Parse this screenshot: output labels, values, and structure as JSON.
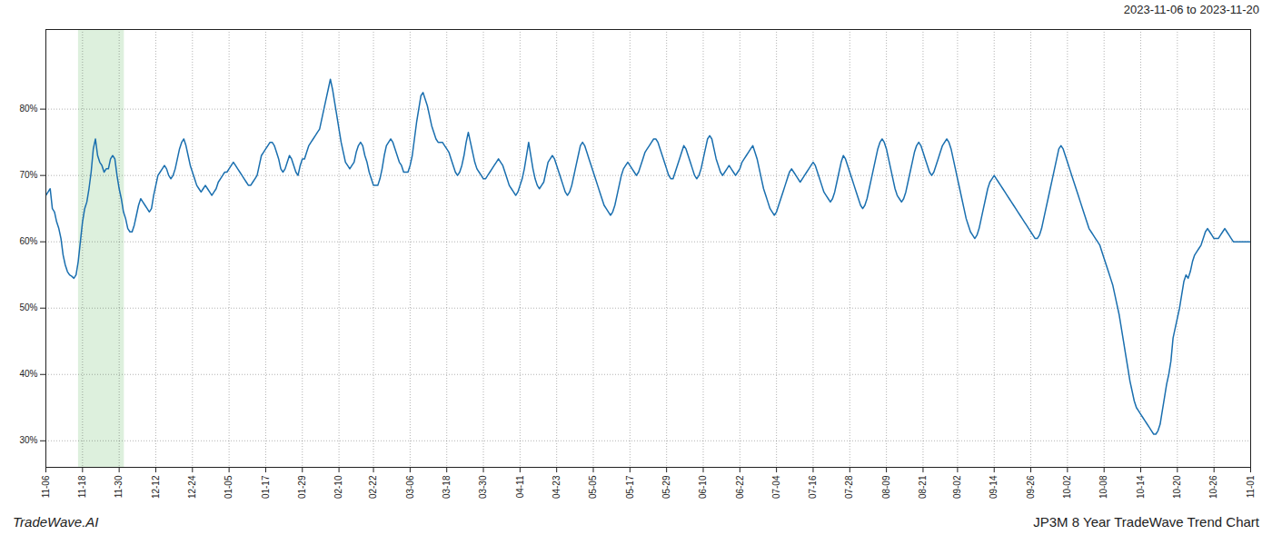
{
  "chart_data": {
    "type": "line",
    "title": "JP3M 8 Year TradeWave Trend Chart",
    "subtitle": "2023-11-06 to 2023-11-20",
    "annotations": [
      {
        "text": "TradeWave.AI"
      }
    ],
    "color": "#1a6faf",
    "grid": true,
    "ylim": [
      26,
      92
    ],
    "yticks": [
      {
        "value": 30,
        "label": "30%"
      },
      {
        "value": 40,
        "label": "40%"
      },
      {
        "value": 50,
        "label": "50%"
      },
      {
        "value": 60,
        "label": "60%"
      },
      {
        "value": 70,
        "label": "70%"
      },
      {
        "value": 80,
        "label": "80%"
      }
    ],
    "highlight": {
      "x_start": 15.12,
      "x_end": 36.4,
      "color": "#ddf0dd"
    },
    "categories": [
      "11-06",
      null,
      null,
      null,
      null,
      null,
      null,
      null,
      null,
      null,
      null,
      null,
      null,
      null,
      null,
      null,
      null,
      "11-18",
      null,
      null,
      null,
      null,
      null,
      null,
      null,
      null,
      null,
      null,
      null,
      null,
      null,
      null,
      null,
      null,
      "11-30",
      null,
      null,
      null,
      null,
      null,
      null,
      null,
      null,
      null,
      null,
      null,
      null,
      null,
      null,
      null,
      null,
      "12-12",
      null,
      null,
      null,
      null,
      null,
      null,
      null,
      null,
      null,
      null,
      null,
      null,
      null,
      null,
      null,
      null,
      "12-24",
      null,
      null,
      null,
      null,
      null,
      null,
      null,
      null,
      null,
      null,
      null,
      null,
      null,
      null,
      null,
      null,
      "01-05",
      null,
      null,
      null,
      null,
      null,
      null,
      null,
      null,
      null,
      null,
      null,
      null,
      null,
      null,
      null,
      null,
      "01-17",
      null,
      null,
      null,
      null,
      null,
      null,
      null,
      null,
      null,
      null,
      null,
      null,
      null,
      null,
      null,
      null,
      "01-29",
      null,
      null,
      null,
      null,
      null,
      null,
      null,
      null,
      null,
      null,
      null,
      null,
      null,
      null,
      null,
      null,
      "02-10",
      null,
      null,
      null,
      null,
      null,
      null,
      null,
      null,
      null,
      null,
      null,
      null,
      null,
      null,
      null,
      "02-22",
      null,
      null,
      null,
      null,
      null,
      null,
      null,
      null,
      null,
      null,
      null,
      null,
      null,
      null,
      null,
      null,
      "03-06",
      null,
      null,
      null,
      null,
      null,
      null,
      null,
      null,
      null,
      null,
      null,
      null,
      null,
      null,
      null,
      null,
      "03-18",
      null,
      null,
      null,
      null,
      null,
      null,
      null,
      null,
      null,
      null,
      null,
      null,
      null,
      null,
      null,
      null,
      "03-30",
      null,
      null,
      null,
      null,
      null,
      null,
      null,
      null,
      null,
      null,
      null,
      null,
      null,
      null,
      null,
      null,
      "04-11",
      null,
      null,
      null,
      null,
      null,
      null,
      null,
      null,
      null,
      null,
      null,
      null,
      null,
      null,
      null,
      null,
      "04-23",
      null,
      null,
      null,
      null,
      null,
      null,
      null,
      null,
      null,
      null,
      null,
      null,
      null,
      null,
      null,
      null,
      "05-05",
      null,
      null,
      null,
      null,
      null,
      null,
      null,
      null,
      null,
      null,
      null,
      null,
      null,
      null,
      null,
      null,
      "05-17",
      null,
      null,
      null,
      null,
      null,
      null,
      null,
      null,
      null,
      null,
      null,
      null,
      null,
      null,
      null,
      null,
      "05-29",
      null,
      null,
      null,
      null,
      null,
      null,
      null,
      null,
      null,
      null,
      null,
      null,
      null,
      null,
      null,
      null,
      "06-10",
      null,
      null,
      null,
      null,
      null,
      null,
      null,
      null,
      null,
      null,
      null,
      null,
      null,
      null,
      null,
      null,
      "06-22",
      null,
      null,
      null,
      null,
      null,
      null,
      null,
      null,
      null,
      null,
      null,
      null,
      null,
      null,
      null,
      null,
      "07-04",
      null,
      null,
      null,
      null,
      null,
      null,
      null,
      null,
      null,
      null,
      null,
      null,
      null,
      null,
      null,
      null,
      "07-16",
      null,
      null,
      null,
      null,
      null,
      null,
      null,
      null,
      null,
      null,
      null,
      null,
      null,
      null,
      null,
      null,
      "07-28",
      null,
      null,
      null,
      null,
      null,
      null,
      null,
      null,
      null,
      null,
      null,
      null,
      null,
      null,
      null,
      null,
      "08-09",
      null,
      null,
      null,
      null,
      null,
      null,
      null,
      null,
      null,
      null,
      null,
      null,
      null,
      null,
      null,
      null,
      "08-21",
      null,
      null,
      null,
      null,
      null,
      null,
      null,
      null,
      null,
      null,
      null,
      null,
      null,
      null,
      null,
      "09-02",
      null,
      null,
      null,
      null,
      null,
      null,
      null,
      null,
      null,
      null,
      null,
      null,
      null,
      null,
      null,
      null,
      "09-14",
      null,
      null,
      null,
      null,
      null,
      null,
      null,
      null,
      null,
      null,
      null,
      null,
      null,
      null,
      null,
      null,
      "09-26",
      null,
      null,
      null,
      null,
      null,
      null,
      null,
      null,
      null,
      null,
      null,
      null,
      null,
      null,
      null,
      null,
      "10-02",
      null,
      null,
      null,
      null,
      null,
      null,
      null,
      null,
      null,
      null,
      null,
      null,
      null,
      null,
      null,
      null,
      "10-08",
      null,
      null,
      null,
      null,
      null,
      null,
      null,
      null,
      null,
      null,
      null,
      null,
      null,
      null,
      null,
      null,
      "10-14",
      null,
      null,
      null,
      null,
      null,
      null,
      null,
      null,
      null,
      null,
      null,
      null,
      null,
      null,
      null,
      null,
      "10-20",
      null,
      null,
      null,
      null,
      null,
      null,
      null,
      null,
      null,
      null,
      null,
      null,
      null,
      null,
      null,
      null,
      "10-26",
      null,
      null,
      null,
      null,
      null,
      null,
      null,
      null,
      null,
      null,
      null,
      null,
      null,
      null,
      null,
      null,
      "11-01"
    ],
    "values": [
      67.0,
      67.5,
      68.0,
      65.0,
      64.5,
      63.0,
      62.0,
      60.5,
      58.0,
      56.5,
      55.5,
      55.0,
      54.8,
      54.5,
      55.0,
      57.0,
      60.0,
      63.0,
      65.0,
      66.0,
      68.0,
      70.5,
      74.0,
      75.5,
      73.0,
      72.0,
      71.5,
      70.5,
      71.0,
      71.0,
      72.5,
      73.0,
      72.5,
      70.0,
      68.0,
      66.5,
      64.5,
      63.5,
      62.0,
      61.5,
      61.5,
      62.5,
      64.0,
      65.5,
      66.5,
      66.0,
      65.5,
      65.0,
      64.5,
      65.0,
      67.0,
      68.5,
      70.0,
      70.5,
      71.0,
      71.5,
      71.0,
      70.0,
      69.5,
      70.0,
      71.0,
      72.5,
      74.0,
      75.0,
      75.5,
      74.5,
      73.0,
      71.5,
      70.5,
      69.5,
      68.5,
      68.0,
      67.5,
      68.0,
      68.5,
      68.0,
      67.5,
      67.0,
      67.5,
      68.0,
      69.0,
      69.5,
      70.0,
      70.5,
      70.5,
      71.0,
      71.5,
      72.0,
      71.5,
      71.0,
      70.5,
      70.0,
      69.5,
      69.0,
      68.5,
      68.5,
      69.0,
      69.5,
      70.0,
      71.5,
      73.0,
      73.5,
      74.0,
      74.5,
      75.0,
      75.0,
      74.5,
      73.5,
      72.5,
      71.0,
      70.5,
      71.0,
      72.0,
      73.0,
      72.5,
      71.5,
      70.5,
      70.0,
      71.5,
      72.5,
      72.5,
      73.5,
      74.5,
      75.0,
      75.5,
      76.0,
      76.5,
      77.0,
      78.5,
      80.0,
      81.5,
      83.0,
      84.5,
      83.0,
      81.0,
      79.0,
      77.0,
      75.0,
      73.5,
      72.0,
      71.5,
      71.0,
      71.5,
      72.0,
      73.5,
      74.5,
      75.0,
      74.5,
      73.0,
      72.0,
      70.5,
      69.5,
      68.5,
      68.5,
      68.5,
      69.5,
      71.0,
      73.0,
      74.5,
      75.0,
      75.5,
      75.0,
      74.0,
      73.0,
      72.0,
      71.5,
      70.5,
      70.5,
      70.5,
      71.5,
      73.0,
      75.5,
      78.0,
      80.0,
      82.0,
      82.5,
      81.5,
      80.5,
      79.0,
      77.5,
      76.5,
      75.5,
      75.0,
      75.0,
      75.0,
      74.5,
      74.0,
      73.5,
      72.5,
      71.5,
      70.5,
      70.0,
      70.5,
      71.5,
      73.0,
      75.0,
      76.5,
      75.0,
      73.5,
      72.0,
      71.0,
      70.5,
      70.0,
      69.5,
      69.5,
      70.0,
      70.5,
      71.0,
      71.5,
      72.0,
      72.5,
      72.0,
      71.5,
      70.5,
      69.5,
      68.5,
      68.0,
      67.5,
      67.0,
      67.5,
      68.5,
      69.5,
      71.0,
      73.0,
      75.0,
      73.0,
      71.0,
      69.5,
      68.5,
      68.0,
      68.5,
      69.0,
      70.5,
      72.0,
      72.5,
      73.0,
      72.5,
      71.5,
      70.5,
      69.5,
      68.5,
      67.5,
      67.0,
      67.5,
      68.5,
      70.0,
      71.5,
      73.0,
      74.5,
      75.0,
      74.5,
      73.5,
      72.5,
      71.5,
      70.5,
      69.5,
      68.5,
      67.5,
      66.5,
      65.5,
      65.0,
      64.5,
      64.0,
      64.5,
      65.5,
      67.0,
      68.5,
      70.0,
      71.0,
      71.5,
      72.0,
      71.5,
      71.0,
      70.5,
      70.0,
      70.5,
      71.5,
      72.5,
      73.5,
      74.0,
      74.5,
      75.0,
      75.5,
      75.5,
      75.0,
      74.0,
      73.0,
      72.0,
      71.0,
      70.0,
      69.5,
      69.5,
      70.5,
      71.5,
      72.5,
      73.5,
      74.5,
      74.0,
      73.0,
      72.0,
      71.0,
      70.0,
      69.5,
      70.0,
      71.0,
      72.5,
      74.0,
      75.5,
      76.0,
      75.5,
      74.0,
      72.5,
      71.5,
      70.5,
      70.0,
      70.5,
      71.0,
      71.5,
      71.0,
      70.5,
      70.0,
      70.5,
      71.0,
      72.0,
      72.5,
      73.0,
      73.5,
      74.0,
      74.5,
      73.5,
      72.5,
      71.0,
      69.5,
      68.0,
      67.0,
      66.0,
      65.0,
      64.5,
      64.0,
      64.5,
      65.5,
      66.5,
      67.5,
      68.5,
      69.5,
      70.5,
      71.0,
      70.5,
      70.0,
      69.5,
      69.0,
      69.5,
      70.0,
      70.5,
      71.0,
      71.5,
      72.0,
      71.5,
      70.5,
      69.5,
      68.5,
      67.5,
      67.0,
      66.5,
      66.0,
      66.5,
      67.5,
      69.0,
      70.5,
      72.0,
      73.0,
      72.5,
      71.5,
      70.5,
      69.5,
      68.5,
      67.5,
      66.5,
      65.5,
      65.0,
      65.5,
      66.5,
      68.0,
      69.5,
      71.0,
      72.5,
      74.0,
      75.0,
      75.5,
      75.0,
      74.0,
      72.5,
      71.0,
      69.5,
      68.0,
      67.0,
      66.5,
      66.0,
      66.5,
      67.5,
      69.0,
      70.5,
      72.0,
      73.5,
      74.5,
      75.0,
      74.5,
      73.5,
      72.5,
      71.5,
      70.5,
      70.0,
      70.5,
      71.5,
      72.5,
      73.5,
      74.5,
      75.0,
      75.5,
      75.0,
      74.0,
      72.5,
      71.0,
      69.5,
      68.0,
      66.5,
      65.0,
      63.5,
      62.5,
      61.5,
      61.0,
      60.5,
      61.0,
      62.0,
      63.5,
      65.0,
      66.5,
      68.0,
      69.0,
      69.5,
      70.0,
      69.5,
      69.0,
      68.5,
      68.0,
      67.5,
      67.0,
      66.5,
      66.0,
      65.5,
      65.0,
      64.5,
      64.0,
      63.5,
      63.0,
      62.5,
      62.0,
      61.5,
      61.0,
      60.5,
      60.5,
      61.0,
      62.0,
      63.5,
      65.0,
      66.5,
      68.0,
      69.5,
      71.0,
      72.5,
      74.0,
      74.5,
      74.0,
      73.0,
      72.0,
      71.0,
      70.0,
      69.0,
      68.0,
      67.0,
      66.0,
      65.0,
      64.0,
      63.0,
      62.0,
      61.5,
      61.0,
      60.5,
      60.0,
      59.5,
      58.5,
      57.5,
      56.5,
      55.5,
      54.5,
      53.5,
      52.0,
      50.5,
      49.0,
      47.0,
      45.0,
      43.0,
      41.0,
      39.0,
      37.5,
      36.0,
      35.0,
      34.5,
      34.0,
      33.5,
      33.0,
      32.5,
      32.0,
      31.5,
      31.0,
      31.0,
      31.5,
      32.5,
      34.5,
      36.5,
      38.5,
      40.0,
      42.0,
      45.5,
      47.0,
      48.5,
      50.0,
      52.0,
      54.0,
      55.0,
      54.5,
      55.5,
      57.0,
      58.0,
      58.5,
      59.0,
      59.5,
      60.5,
      61.5,
      62.0,
      61.5,
      61.0,
      60.5,
      60.5,
      60.5,
      61.0,
      61.5,
      62.0,
      61.5,
      61.0,
      60.5,
      60.0,
      60.0,
      60.0,
      60.0,
      60.0,
      60.0,
      60.0,
      60.0,
      60.0
    ]
  }
}
